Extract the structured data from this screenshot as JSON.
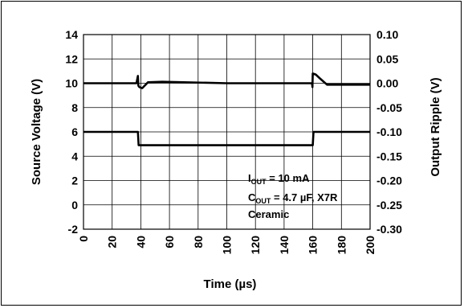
{
  "chart_data": {
    "type": "line",
    "xlabel": "Time (µs)",
    "ylabel_left": "Source Voltage (V)",
    "ylabel_right": "Output Ripple (V)",
    "xlim": [
      0,
      200
    ],
    "ylim_left": [
      -2,
      14
    ],
    "ylim_right": [
      -0.3,
      0.1
    ],
    "x_ticks": [
      "0",
      "20",
      "40",
      "60",
      "80",
      "100",
      "120",
      "140",
      "160",
      "180",
      "200"
    ],
    "y_left_ticks": [
      "14",
      "12",
      "10",
      "8",
      "6",
      "4",
      "2",
      "0",
      "-2"
    ],
    "y_right_ticks": [
      "0.10",
      "0.05",
      "0.00",
      "-0.05",
      "-0.10",
      "-0.15",
      "-0.20",
      "-0.25",
      "-0.30"
    ],
    "grid": true,
    "series": [
      {
        "axis": "left",
        "x": [
          0,
          38,
          38.5,
          160,
          160.5,
          200
        ],
        "values": [
          6.0,
          6.0,
          4.9,
          4.9,
          6.0,
          6.0
        ]
      },
      {
        "axis": "right",
        "x": [
          0,
          37,
          38,
          38.3,
          39,
          41,
          45,
          55,
          100,
          150,
          159.5,
          159.8,
          160,
          162,
          165,
          170,
          175,
          200
        ],
        "values": [
          0.0,
          0.0,
          0.015,
          -0.005,
          -0.008,
          -0.01,
          0.002,
          0.003,
          0.0,
          0.0,
          0.0,
          -0.008,
          0.02,
          0.018,
          0.01,
          -0.003,
          -0.003,
          -0.003
        ]
      }
    ],
    "annotation": {
      "line1_main": "I",
      "line1_sub": "OUT",
      "line1_rest": " = 10 mA",
      "line2_main": "C",
      "line2_sub": "OUT",
      "line2_rest": " = 4.7 µF, X7R",
      "line3": "Ceramic"
    }
  }
}
